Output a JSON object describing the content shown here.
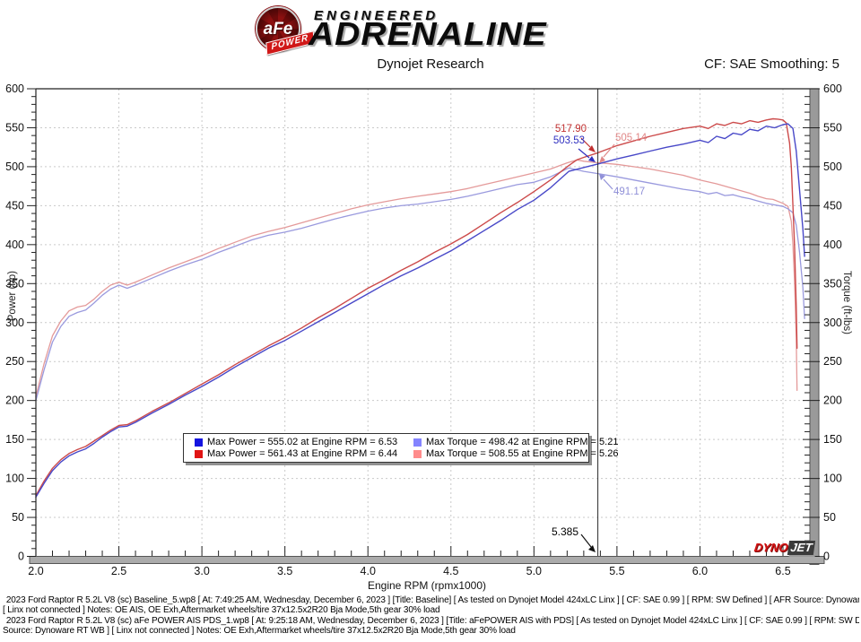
{
  "header": {
    "logo": {
      "badge_text": "aFe",
      "banner_text": "POWER",
      "line1": "ENGINEERED",
      "line2": "ADRENALINE"
    },
    "title": "Dynojet Research",
    "smoothing_label": "CF: SAE Smoothing: 5"
  },
  "chart_data": {
    "type": "line",
    "title": "Dynojet Research",
    "xlabel": "Engine RPM (rpmx1000)",
    "ylabel_left": "Power (hp)",
    "ylabel_right": "Torque (ft-lbs)",
    "xlim": [
      2.0,
      6.7
    ],
    "ylim": [
      0,
      600
    ],
    "x_ticks": [
      2.0,
      2.5,
      3.0,
      3.5,
      4.0,
      4.5,
      5.0,
      5.5,
      6.0,
      6.5
    ],
    "x_minor_step": 0.1,
    "y_major_step": 50,
    "y_minor_step": 10,
    "grid": true,
    "grid_color": "#c9c9c9",
    "cursor": {
      "rpm": 5.385,
      "label": "5.385"
    },
    "annotations": [
      {
        "text": "517.90",
        "color": "#c03030",
        "series": "aFe Power at cursor"
      },
      {
        "text": "503.53",
        "color": "#3030c0",
        "series": "Baseline Power at cursor"
      },
      {
        "text": "505.14",
        "color": "#e08888",
        "series": "aFe Torque at cursor"
      },
      {
        "text": "491.17",
        "color": "#9090d8",
        "series": "Baseline Torque at cursor"
      }
    ],
    "series": [
      {
        "name": "aFe Torque",
        "color": "#e49a9a",
        "width": 1.3,
        "points": [
          [
            2.0,
            205
          ],
          [
            2.05,
            248
          ],
          [
            2.1,
            283
          ],
          [
            2.15,
            302
          ],
          [
            2.2,
            315
          ],
          [
            2.25,
            320
          ],
          [
            2.3,
            322
          ],
          [
            2.35,
            330
          ],
          [
            2.4,
            340
          ],
          [
            2.45,
            348
          ],
          [
            2.5,
            352
          ],
          [
            2.55,
            348
          ],
          [
            2.6,
            352
          ],
          [
            2.7,
            361
          ],
          [
            2.8,
            370
          ],
          [
            2.9,
            378
          ],
          [
            3.0,
            386
          ],
          [
            3.1,
            395
          ],
          [
            3.2,
            403
          ],
          [
            3.3,
            411
          ],
          [
            3.4,
            417
          ],
          [
            3.5,
            422
          ],
          [
            3.6,
            428
          ],
          [
            3.7,
            434
          ],
          [
            3.8,
            440
          ],
          [
            3.9,
            446
          ],
          [
            4.0,
            451
          ],
          [
            4.1,
            455
          ],
          [
            4.2,
            459
          ],
          [
            4.3,
            462
          ],
          [
            4.4,
            465
          ],
          [
            4.5,
            468
          ],
          [
            4.6,
            472
          ],
          [
            4.7,
            477
          ],
          [
            4.8,
            482
          ],
          [
            4.9,
            487
          ],
          [
            5.0,
            492
          ],
          [
            5.1,
            497
          ],
          [
            5.2,
            505
          ],
          [
            5.26,
            508.6
          ],
          [
            5.3,
            507
          ],
          [
            5.385,
            505.1
          ],
          [
            5.5,
            503
          ],
          [
            5.6,
            500
          ],
          [
            5.7,
            497
          ],
          [
            5.8,
            493
          ],
          [
            5.9,
            489
          ],
          [
            6.0,
            483
          ],
          [
            6.1,
            478
          ],
          [
            6.2,
            472
          ],
          [
            6.3,
            466
          ],
          [
            6.35,
            462
          ],
          [
            6.4,
            459
          ],
          [
            6.44,
            458
          ],
          [
            6.5,
            453
          ],
          [
            6.53,
            449
          ],
          [
            6.55,
            430
          ],
          [
            6.56,
            400
          ],
          [
            6.57,
            350
          ],
          [
            6.58,
            280
          ],
          [
            6.585,
            213
          ]
        ]
      },
      {
        "name": "Baseline Torque",
        "color": "#9a9ade",
        "width": 1.3,
        "points": [
          [
            2.0,
            200
          ],
          [
            2.05,
            240
          ],
          [
            2.1,
            275
          ],
          [
            2.15,
            295
          ],
          [
            2.2,
            308
          ],
          [
            2.25,
            313
          ],
          [
            2.3,
            316
          ],
          [
            2.35,
            325
          ],
          [
            2.4,
            335
          ],
          [
            2.45,
            343
          ],
          [
            2.5,
            348
          ],
          [
            2.55,
            344
          ],
          [
            2.6,
            348
          ],
          [
            2.7,
            357
          ],
          [
            2.8,
            366
          ],
          [
            2.9,
            374
          ],
          [
            3.0,
            381
          ],
          [
            3.1,
            390
          ],
          [
            3.2,
            398
          ],
          [
            3.3,
            406
          ],
          [
            3.4,
            412
          ],
          [
            3.5,
            416
          ],
          [
            3.6,
            421
          ],
          [
            3.7,
            427
          ],
          [
            3.8,
            433
          ],
          [
            3.9,
            438
          ],
          [
            4.0,
            443
          ],
          [
            4.1,
            447
          ],
          [
            4.2,
            450
          ],
          [
            4.3,
            452
          ],
          [
            4.4,
            455
          ],
          [
            4.5,
            458
          ],
          [
            4.6,
            462
          ],
          [
            4.7,
            467
          ],
          [
            4.8,
            472
          ],
          [
            4.9,
            477
          ],
          [
            5.0,
            480
          ],
          [
            5.1,
            487
          ],
          [
            5.21,
            498.4
          ],
          [
            5.3,
            494
          ],
          [
            5.385,
            491.2
          ],
          [
            5.5,
            487
          ],
          [
            5.6,
            483
          ],
          [
            5.7,
            479
          ],
          [
            5.8,
            475
          ],
          [
            5.9,
            471
          ],
          [
            6.0,
            468
          ],
          [
            6.05,
            465
          ],
          [
            6.1,
            467
          ],
          [
            6.15,
            463
          ],
          [
            6.2,
            464
          ],
          [
            6.25,
            461
          ],
          [
            6.3,
            459
          ],
          [
            6.35,
            456
          ],
          [
            6.4,
            453
          ],
          [
            6.45,
            451
          ],
          [
            6.5,
            449
          ],
          [
            6.53,
            446
          ],
          [
            6.56,
            441
          ],
          [
            6.58,
            425
          ],
          [
            6.6,
            390
          ],
          [
            6.62,
            345
          ],
          [
            6.63,
            305
          ]
        ]
      },
      {
        "name": "aFe Power",
        "color": "#cc4a4a",
        "width": 1.4,
        "points": [
          [
            2.0,
            78
          ],
          [
            2.05,
            97
          ],
          [
            2.1,
            113
          ],
          [
            2.15,
            124
          ],
          [
            2.2,
            132
          ],
          [
            2.25,
            137
          ],
          [
            2.3,
            141
          ],
          [
            2.35,
            148
          ],
          [
            2.4,
            155
          ],
          [
            2.45,
            162
          ],
          [
            2.5,
            168
          ],
          [
            2.55,
            169
          ],
          [
            2.6,
            174
          ],
          [
            2.7,
            186
          ],
          [
            2.8,
            197
          ],
          [
            2.9,
            209
          ],
          [
            3.0,
            221
          ],
          [
            3.1,
            233
          ],
          [
            3.2,
            246
          ],
          [
            3.3,
            258
          ],
          [
            3.4,
            270
          ],
          [
            3.5,
            281
          ],
          [
            3.6,
            293
          ],
          [
            3.7,
            306
          ],
          [
            3.8,
            318
          ],
          [
            3.9,
            331
          ],
          [
            4.0,
            344
          ],
          [
            4.1,
            355
          ],
          [
            4.2,
            367
          ],
          [
            4.3,
            378
          ],
          [
            4.4,
            390
          ],
          [
            4.5,
            401
          ],
          [
            4.6,
            413
          ],
          [
            4.7,
            427
          ],
          [
            4.8,
            441
          ],
          [
            4.9,
            454
          ],
          [
            5.0,
            468
          ],
          [
            5.1,
            483
          ],
          [
            5.2,
            500
          ],
          [
            5.26,
            509
          ],
          [
            5.3,
            512
          ],
          [
            5.385,
            517.9
          ],
          [
            5.5,
            527
          ],
          [
            5.6,
            533
          ],
          [
            5.7,
            539
          ],
          [
            5.8,
            544
          ],
          [
            5.9,
            549
          ],
          [
            6.0,
            552
          ],
          [
            6.05,
            549
          ],
          [
            6.1,
            555
          ],
          [
            6.15,
            553
          ],
          [
            6.2,
            557
          ],
          [
            6.25,
            555
          ],
          [
            6.3,
            559
          ],
          [
            6.35,
            557
          ],
          [
            6.4,
            560
          ],
          [
            6.44,
            561.4
          ],
          [
            6.47,
            561
          ],
          [
            6.5,
            560
          ],
          [
            6.52,
            556
          ],
          [
            6.54,
            530
          ],
          [
            6.55,
            500
          ],
          [
            6.56,
            450
          ],
          [
            6.57,
            395
          ],
          [
            6.58,
            320
          ],
          [
            6.585,
            267
          ]
        ]
      },
      {
        "name": "Baseline Power",
        "color": "#4848c8",
        "width": 1.4,
        "points": [
          [
            2.0,
            76
          ],
          [
            2.05,
            94
          ],
          [
            2.1,
            110
          ],
          [
            2.15,
            121
          ],
          [
            2.2,
            129
          ],
          [
            2.25,
            134
          ],
          [
            2.3,
            138
          ],
          [
            2.35,
            145
          ],
          [
            2.4,
            153
          ],
          [
            2.45,
            160
          ],
          [
            2.5,
            166
          ],
          [
            2.55,
            167
          ],
          [
            2.6,
            172
          ],
          [
            2.7,
            184
          ],
          [
            2.8,
            195
          ],
          [
            2.9,
            207
          ],
          [
            3.0,
            218
          ],
          [
            3.1,
            230
          ],
          [
            3.2,
            243
          ],
          [
            3.3,
            255
          ],
          [
            3.4,
            267
          ],
          [
            3.5,
            277
          ],
          [
            3.6,
            289
          ],
          [
            3.7,
            301
          ],
          [
            3.8,
            313
          ],
          [
            3.9,
            325
          ],
          [
            4.0,
            337
          ],
          [
            4.1,
            349
          ],
          [
            4.2,
            360
          ],
          [
            4.3,
            370
          ],
          [
            4.4,
            381
          ],
          [
            4.5,
            392
          ],
          [
            4.6,
            405
          ],
          [
            4.7,
            418
          ],
          [
            4.8,
            431
          ],
          [
            4.9,
            445
          ],
          [
            5.0,
            457
          ],
          [
            5.1,
            473
          ],
          [
            5.21,
            494
          ],
          [
            5.3,
            499
          ],
          [
            5.385,
            503.5
          ],
          [
            5.5,
            510
          ],
          [
            5.6,
            515
          ],
          [
            5.7,
            520
          ],
          [
            5.8,
            525
          ],
          [
            5.9,
            529
          ],
          [
            6.0,
            534
          ],
          [
            6.05,
            531
          ],
          [
            6.1,
            539
          ],
          [
            6.15,
            536
          ],
          [
            6.2,
            543
          ],
          [
            6.25,
            541
          ],
          [
            6.3,
            548
          ],
          [
            6.35,
            546
          ],
          [
            6.4,
            552
          ],
          [
            6.45,
            550
          ],
          [
            6.5,
            554
          ],
          [
            6.53,
            555
          ],
          [
            6.56,
            549
          ],
          [
            6.58,
            520
          ],
          [
            6.6,
            470
          ],
          [
            6.62,
            420
          ],
          [
            6.63,
            385
          ]
        ]
      }
    ]
  },
  "legend": {
    "items": [
      {
        "color": "#1414e0",
        "text": "Max Power = 555.02 at Engine RPM = 6.53"
      },
      {
        "color": "#8484ff",
        "text": "Max Torque = 498.42 at Engine RPM = 5.21"
      },
      {
        "color": "#e01414",
        "text": "Max Power = 561.43 at Engine RPM = 6.44"
      },
      {
        "color": "#ff8c8c",
        "text": "Max Torque = 508.55 at Engine RPM = 5.26"
      }
    ]
  },
  "watermark": {
    "part1": "DYNO",
    "part2": "JET"
  },
  "footer": {
    "marker": "”",
    "lines": [
      "2023 Ford Raptor R 5.2L V8 (sc) Baseline_5.wp8 [ At: 7:49:25 AM, Wednesday, December 6, 2023 ] [Title: Baseline]  [ As tested on Dynojet Model 424xLC Linx ] [ CF: SAE 0.99 ] [ RPM: SW Defined ] [ AFR Source: Dynoware RT WB ]",
      "[ Linx not connected ] Notes: OE AIS, OE Exh,Aftermarket wheels/tire 37x12.5x2R20 Bja Mode,5th gear 30% load",
      "2023 Ford Raptor R 5.2L V8 (sc) aFe POWER AIS PDS_1.wp8 [ At: 9:25:18 AM, Wednesday, December 6, 2023 ] [Title: aFePOWER AIS with PDS]  [ As tested on Dynojet Model 424xLC Linx ] [ CF: SAE 0.99 ] [ RPM: SW Defined ] [ AFR",
      "Source: Dynoware RT WB ] [ Linx not connected ] Notes: OE Exh,Aftermarket wheels/tire 37x12.5x2R20 Bja Mode,5th gear 30% load"
    ]
  }
}
